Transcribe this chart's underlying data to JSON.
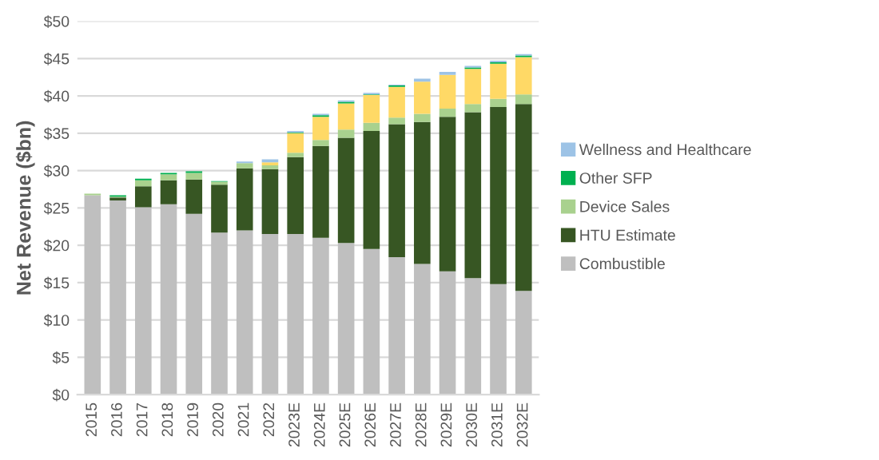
{
  "chart_data": {
    "type": "bar",
    "stacked": true,
    "ylabel": "Net Revenue ($bn)",
    "categories": [
      "2015",
      "2016",
      "2017",
      "2018",
      "2019",
      "2020",
      "2021",
      "2022",
      "2023E",
      "2024E",
      "2025E",
      "2026E",
      "2027E",
      "2028E",
      "2029E",
      "2030E",
      "2031E",
      "2032E"
    ],
    "series": [
      {
        "name": "Combustible",
        "color": "#bfbfbf",
        "values": [
          26.7,
          26.0,
          25.1,
          25.5,
          24.2,
          21.7,
          22.0,
          21.5,
          21.5,
          21.0,
          20.3,
          19.5,
          18.4,
          17.5,
          16.5,
          15.6,
          14.8,
          13.9
        ]
      },
      {
        "name": "HTU Estimate",
        "color": "#375623",
        "values": [
          0,
          0.4,
          2.8,
          3.2,
          4.6,
          6.4,
          8.3,
          8.7,
          10.3,
          12.3,
          14.1,
          15.8,
          17.8,
          19.0,
          20.7,
          22.2,
          23.7,
          25.0
        ]
      },
      {
        "name": "Device Sales",
        "color": "#a9d18e",
        "values": [
          0.2,
          0.1,
          0.8,
          0.8,
          0.9,
          0.4,
          0.7,
          0.5,
          0.6,
          0.8,
          1.1,
          1.1,
          0.9,
          1.1,
          1.1,
          1.1,
          1.1,
          1.3
        ]
      },
      {
        "color": "#ffd966",
        "values": [
          0,
          0,
          0,
          0,
          0,
          0,
          0,
          0.4,
          2.6,
          3.1,
          3.5,
          3.7,
          4.1,
          4.3,
          4.5,
          4.7,
          4.7,
          5.0
        ]
      },
      {
        "name": "Other SFP",
        "color": "#00b050",
        "values": [
          0,
          0.2,
          0.2,
          0.2,
          0.2,
          0.1,
          0,
          0,
          0.1,
          0.2,
          0.2,
          0.1,
          0.2,
          0,
          0,
          0.2,
          0.2,
          0.2
        ]
      },
      {
        "name": "Wellness and Healthcare",
        "color": "#9dc3e6",
        "values": [
          0,
          0,
          0,
          0,
          0,
          0,
          0.2,
          0.4,
          0.2,
          0.2,
          0.2,
          0.2,
          0.1,
          0.4,
          0.4,
          0.2,
          0.2,
          0.2
        ]
      }
    ],
    "ylim": [
      0,
      50
    ],
    "yticks": [
      {
        "value": 0,
        "label": "$0"
      },
      {
        "value": 5,
        "label": "$5"
      },
      {
        "value": 10,
        "label": "$10"
      },
      {
        "value": 15,
        "label": "$15"
      },
      {
        "value": 20,
        "label": "$20"
      },
      {
        "value": 25,
        "label": "$25"
      },
      {
        "value": 30,
        "label": "$30"
      },
      {
        "value": 35,
        "label": "$35"
      },
      {
        "value": 40,
        "label": "$40"
      },
      {
        "value": 45,
        "label": "$45"
      },
      {
        "value": 50,
        "label": "$50"
      }
    ],
    "grid": "y",
    "legend": "right"
  }
}
